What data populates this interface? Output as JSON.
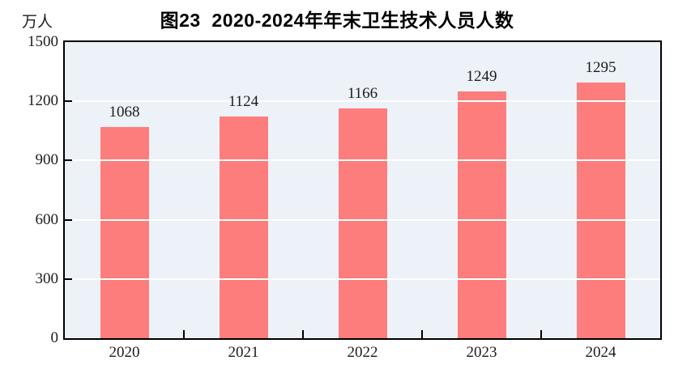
{
  "chart_data": {
    "type": "bar",
    "title": "图23  2020-2024年年末卫生技术人员人数",
    "unit_label": "万人",
    "categories": [
      "2020",
      "2021",
      "2022",
      "2023",
      "2024"
    ],
    "values": [
      1068,
      1124,
      1166,
      1249,
      1295
    ],
    "series_name": "年末卫生技术人员人数",
    "xlabel": "",
    "ylabel": "万人",
    "ylim": [
      0,
      1500
    ],
    "yticks": [
      0,
      300,
      600,
      900,
      1200,
      1500
    ],
    "grid": true,
    "gridlines_in_front": true,
    "legend": "none",
    "data_labels": true,
    "colors": {
      "bar": "#fd7d7d",
      "plot_background": "#ecf2f7",
      "gridline": "#ffffff",
      "axis": "#000000",
      "text": "#1c1c1c",
      "title_text": "#000000"
    }
  }
}
